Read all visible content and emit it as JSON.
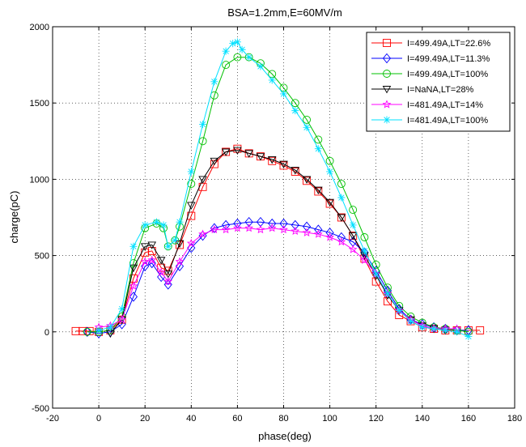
{
  "chart_data": {
    "type": "line",
    "title": "BSA=1.2mm,E=60MV/m",
    "xlabel": "phase(deg)",
    "ylabel": "charge(pC)",
    "xlim": [
      -20,
      180
    ],
    "ylim": [
      -500,
      2000
    ],
    "xticks": [
      -20,
      0,
      20,
      40,
      60,
      80,
      100,
      120,
      140,
      160,
      180
    ],
    "yticks": [
      -500,
      0,
      500,
      1000,
      1500,
      2000
    ],
    "xtick_labels": [
      "-20",
      "0",
      "20",
      "40",
      "60",
      "80",
      "100",
      "120",
      "140",
      "160",
      "180"
    ],
    "ytick_labels": [
      "-500",
      "0",
      "500",
      "1000",
      "1500",
      "2000"
    ],
    "grid": true,
    "legend_position": "top-right",
    "series": [
      {
        "name": "I=499.49A,LT=22.6%",
        "color": "#ff0000",
        "marker": "square",
        "x": [
          -10,
          -7,
          -4,
          0,
          5,
          10,
          15,
          20,
          23,
          27,
          30,
          35,
          40,
          45,
          50,
          55,
          60,
          65,
          70,
          75,
          80,
          85,
          90,
          95,
          100,
          105,
          110,
          115,
          120,
          125,
          130,
          135,
          140,
          145,
          150,
          155,
          160,
          165
        ],
        "y": [
          5,
          5,
          5,
          0,
          10,
          80,
          350,
          520,
          530,
          420,
          400,
          570,
          760,
          950,
          1100,
          1180,
          1200,
          1170,
          1150,
          1120,
          1090,
          1050,
          990,
          920,
          840,
          750,
          630,
          480,
          330,
          200,
          110,
          70,
          30,
          20,
          10,
          10,
          10,
          10
        ]
      },
      {
        "name": "I=499.49A,LT=11.3%",
        "color": "#0000ff",
        "marker": "diamond",
        "x": [
          -5,
          0,
          5,
          10,
          15,
          20,
          23,
          27,
          30,
          35,
          40,
          45,
          50,
          55,
          60,
          65,
          70,
          75,
          80,
          85,
          90,
          95,
          100,
          105,
          110,
          115,
          120,
          125,
          130,
          135,
          140,
          145,
          150,
          155,
          160
        ],
        "y": [
          0,
          -10,
          0,
          50,
          230,
          430,
          450,
          360,
          310,
          430,
          550,
          630,
          680,
          700,
          710,
          720,
          720,
          710,
          710,
          700,
          690,
          670,
          650,
          620,
          590,
          520,
          400,
          270,
          150,
          80,
          50,
          30,
          20,
          10,
          10
        ]
      },
      {
        "name": "I=499.49A,LT=100%",
        "color": "#00c000",
        "marker": "circle",
        "x": [
          -5,
          0,
          5,
          10,
          15,
          20,
          25,
          28,
          30,
          33,
          35,
          40,
          45,
          50,
          55,
          60,
          65,
          70,
          75,
          80,
          85,
          90,
          95,
          100,
          105,
          110,
          115,
          120,
          125,
          130,
          135,
          140,
          145,
          150,
          155,
          160
        ],
        "y": [
          0,
          0,
          10,
          100,
          450,
          680,
          710,
          680,
          560,
          600,
          690,
          970,
          1250,
          1550,
          1750,
          1800,
          1800,
          1760,
          1690,
          1600,
          1500,
          1390,
          1260,
          1120,
          970,
          800,
          620,
          440,
          290,
          170,
          100,
          60,
          30,
          20,
          10,
          0
        ]
      },
      {
        "name": "I=NaNA,LT=28%",
        "color": "#000000",
        "marker": "triangle-down",
        "x": [
          5,
          10,
          15,
          20,
          23,
          27,
          30,
          35,
          40,
          45,
          50,
          55,
          60,
          65,
          70,
          75,
          80,
          85,
          90,
          95,
          100,
          105,
          110,
          115,
          120,
          125,
          130,
          135,
          140,
          145,
          150
        ],
        "y": [
          -10,
          80,
          420,
          560,
          570,
          470,
          380,
          580,
          830,
          1000,
          1120,
          1180,
          1190,
          1170,
          1150,
          1130,
          1100,
          1060,
          1000,
          930,
          850,
          750,
          630,
          500,
          370,
          240,
          140,
          80,
          40,
          20,
          10
        ]
      },
      {
        "name": "I=481.49A,LT=14%",
        "color": "#ff00ff",
        "marker": "star",
        "x": [
          0,
          5,
          10,
          15,
          20,
          23,
          27,
          30,
          35,
          40,
          45,
          50,
          55,
          60,
          65,
          70,
          75,
          80,
          85,
          90,
          95,
          100,
          105,
          110,
          115,
          120,
          125,
          130,
          135,
          140,
          145,
          150,
          155
        ],
        "y": [
          30,
          40,
          80,
          300,
          460,
          470,
          390,
          330,
          460,
          580,
          640,
          670,
          670,
          680,
          680,
          670,
          680,
          670,
          660,
          650,
          640,
          620,
          590,
          540,
          470,
          380,
          250,
          140,
          80,
          40,
          20,
          20,
          20
        ]
      },
      {
        "name": "I=481.49A,LT=100%",
        "color": "#00e0ff",
        "marker": "asterisk",
        "x": [
          0,
          5,
          10,
          15,
          20,
          25,
          28,
          30,
          33,
          35,
          40,
          45,
          50,
          55,
          58,
          60,
          62,
          65,
          70,
          75,
          80,
          85,
          90,
          95,
          100,
          105,
          110,
          115,
          120,
          125,
          130,
          135,
          140,
          145,
          150,
          155,
          160
        ],
        "y": [
          10,
          30,
          150,
          560,
          700,
          720,
          700,
          560,
          600,
          720,
          1050,
          1360,
          1640,
          1840,
          1890,
          1900,
          1850,
          1800,
          1740,
          1650,
          1560,
          1450,
          1340,
          1200,
          1050,
          880,
          700,
          530,
          380,
          250,
          140,
          70,
          30,
          20,
          10,
          0,
          -30
        ]
      }
    ]
  }
}
